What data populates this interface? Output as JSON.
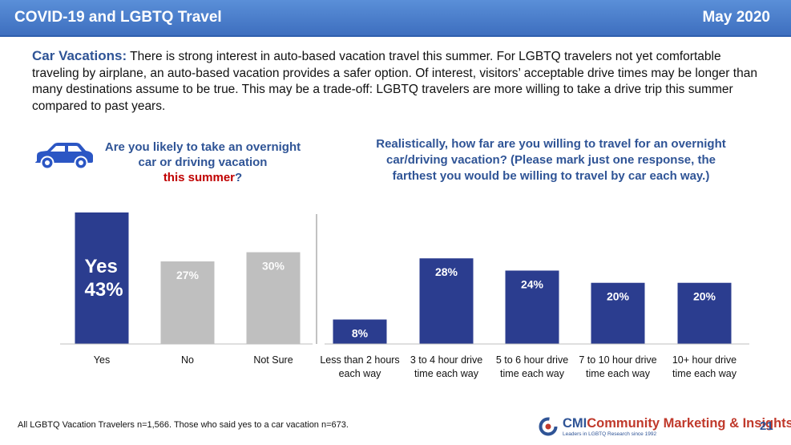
{
  "header": {
    "title": "COVID-19 and LGBTQ Travel",
    "date": "May 2020"
  },
  "intro": {
    "lead": "Car Vacations:",
    "body": "There is strong interest in auto-based vacation travel this summer. For LGBTQ travelers not yet comfortable traveling by airplane, an auto-based vacation provides a safer option.  Of interest, visitors’ acceptable drive times may be longer than many destinations assume to be true. This may be a trade-off: LGBTQ travelers are more willing to take a drive trip this summer compared to past years."
  },
  "question1": {
    "line1": "Are you likely to take an overnight",
    "line2": "car or driving vacation",
    "highlight": "this summer",
    "suffix": "?"
  },
  "question2": {
    "text": "Realistically, how far are you willing to travel for an overnight car/driving vacation? (Please mark just one response, the farthest you would be willing to travel by car each way.)"
  },
  "chart_data": [
    {
      "type": "bar",
      "title": "Are you likely to take an overnight car or driving vacation this summer?",
      "categories": [
        "Yes",
        "No",
        "Not Sure"
      ],
      "values": [
        43,
        27,
        30
      ],
      "data_labels": [
        "Yes\n43%",
        "27%",
        "30%"
      ],
      "unit": "%",
      "colors": [
        "#2b3d8f",
        "#bfbfbf",
        "#bfbfbf"
      ],
      "ylim": [
        0,
        43
      ],
      "grid": false
    },
    {
      "type": "bar",
      "title": "Realistically, how far are you willing to travel for an overnight car/driving vacation?",
      "categories": [
        "Less than 2 hours each way",
        "3 to 4 hour drive time each way",
        "5 to 6 hour drive time each way",
        "7 to 10 hour drive time each way",
        "10+ hour drive time each way"
      ],
      "category_lines": [
        [
          "Less than 2 hours",
          "each way"
        ],
        [
          "3 to 4 hour drive",
          "time each way"
        ],
        [
          "5 to 6 hour drive",
          "time each way"
        ],
        [
          "7 to 10 hour drive",
          "time each way"
        ],
        [
          "10+ hour drive",
          "time each way"
        ]
      ],
      "values": [
        8,
        28,
        24,
        20,
        20
      ],
      "data_labels": [
        "8%",
        "28%",
        "24%",
        "20%",
        "20%"
      ],
      "unit": "%",
      "colors": [
        "#2b3d8f",
        "#2b3d8f",
        "#2b3d8f",
        "#2b3d8f",
        "#2b3d8f"
      ],
      "ylim": [
        0,
        43
      ],
      "grid": false
    }
  ],
  "footnote": "All LGBTQ Vacation Travelers n=1,566. Those who said yes to a car vacation n=673.",
  "logo": {
    "cmi": "CMI",
    "name": "Community Marketing & Insights",
    "tagline": "Leaders in LGBTQ Research since 1992"
  },
  "page_number": "21",
  "icons": {
    "car": "car-icon",
    "logo_mark": "cmi-logo-mark-icon"
  },
  "colors": {
    "accent": "#2f5496",
    "banner": "#4a7fcf",
    "bar_primary": "#2b3d8f",
    "bar_muted": "#bfbfbf",
    "highlight": "#c00000"
  }
}
